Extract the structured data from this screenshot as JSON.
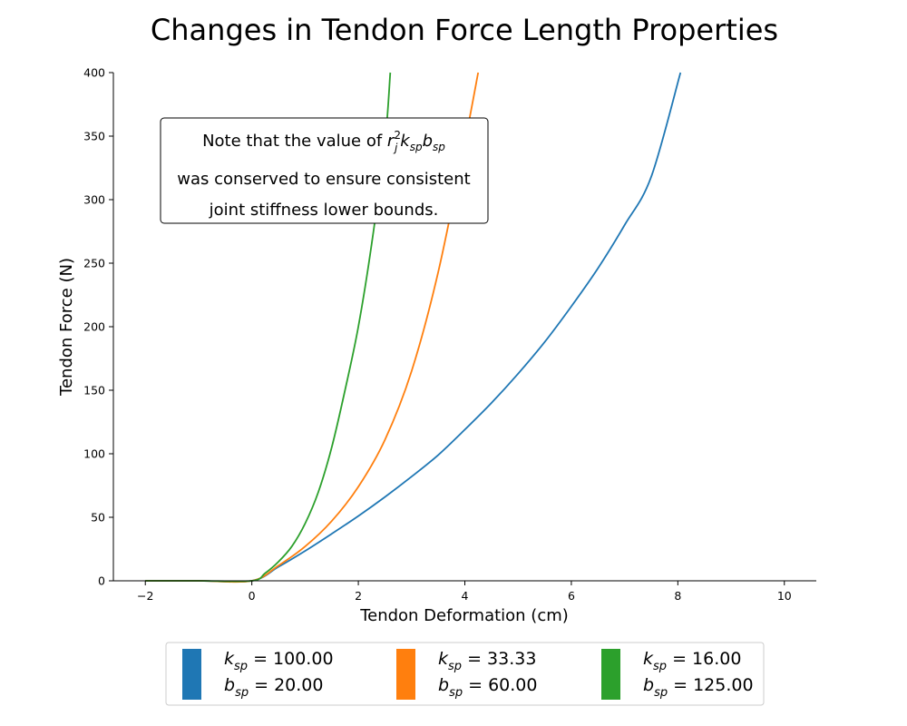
{
  "chart_data": {
    "type": "line",
    "title": "Changes in Tendon Force Length Properties",
    "xlabel": "Tendon Deformation (cm)",
    "ylabel": "Tendon Force (N)",
    "xlim": [
      -2.6,
      10.6
    ],
    "ylim": [
      0,
      400
    ],
    "xticks": [
      -2,
      0,
      2,
      4,
      6,
      8,
      10
    ],
    "yticks": [
      0,
      50,
      100,
      150,
      200,
      250,
      300,
      350,
      400
    ],
    "grid": false,
    "legend_position": "bottom",
    "annotation": {
      "line1_prefix": "Note that the value of ",
      "line1_r": "r",
      "line1_r_sup": "2",
      "line1_r_sub": "j",
      "line1_k": "k",
      "line1_k_sub": "sp",
      "line1_b": "b",
      "line1_b_sub": "sp",
      "line2": "was conserved to ensure consistent",
      "line3": "joint stiffness lower bounds."
    },
    "series": [
      {
        "color": "#1f77b4",
        "k_label": "k",
        "k_sub": "sp",
        "k_value": " = 100.00",
        "b_label": "b",
        "b_sub": "sp",
        "b_value": " = 20.00",
        "x": [
          -2,
          -1,
          0,
          0.5,
          1,
          1.5,
          2,
          2.5,
          3,
          3.5,
          4,
          4.5,
          5,
          5.5,
          6,
          6.5,
          7,
          7.5,
          8.05
        ],
        "y": [
          0,
          0,
          0,
          11,
          23.5,
          37,
          51,
          66,
          82,
          99,
          119,
          140,
          163,
          188,
          216,
          246,
          280,
          318,
          400
        ]
      },
      {
        "color": "#ff7f0e",
        "k_label": "k",
        "k_sub": "sp",
        "k_value": " = 33.33",
        "b_label": "b",
        "b_sub": "sp",
        "b_value": " = 60.00",
        "x": [
          -2,
          -1,
          0,
          0.5,
          1,
          1.5,
          2,
          2.5,
          3,
          3.5,
          4,
          4.25
        ],
        "y": [
          0,
          0,
          0,
          12,
          27,
          47,
          74,
          111,
          165,
          243,
          345,
          400
        ]
      },
      {
        "color": "#2ca02c",
        "k_label": "k",
        "k_sub": "sp",
        "k_value": " = 16.00",
        "b_label": "b",
        "b_sub": "sp",
        "b_value": " = 125.00",
        "x": [
          -2,
          -1,
          0,
          0.25,
          0.5,
          0.75,
          1,
          1.25,
          1.5,
          1.75,
          2,
          2.25,
          2.5,
          2.6
        ],
        "y": [
          0,
          0,
          0,
          6,
          15,
          27,
          45,
          70,
          105,
          150,
          200,
          265,
          345,
          400
        ]
      }
    ]
  }
}
